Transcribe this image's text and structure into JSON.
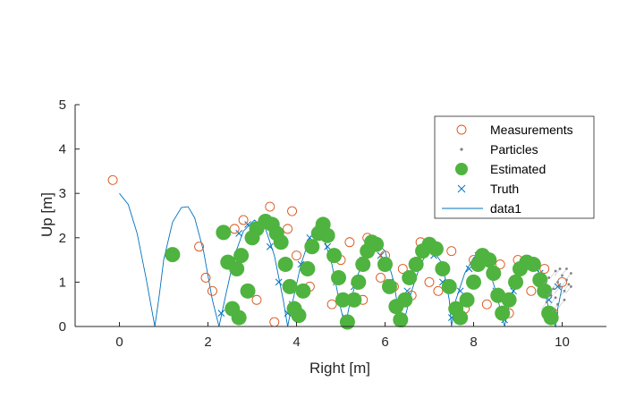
{
  "chart_data": {
    "type": "scatter",
    "xlabel": "Right [m]",
    "ylabel": "Up [m]",
    "xlim": [
      -1,
      11
    ],
    "ylim": [
      0,
      5
    ],
    "xticks": [
      "0",
      "2",
      "4",
      "6",
      "8",
      "10"
    ],
    "yticks": [
      "0",
      "1",
      "2",
      "3",
      "4",
      "5"
    ],
    "grid": false,
    "legend_position": "top-right",
    "legend": [
      "Measurements",
      "Particles",
      "Estimated",
      "Truth",
      "data1"
    ],
    "colors": {
      "measurements": "#d95319",
      "particles": "#808080",
      "estimated": "#4fb33f",
      "truth": "#0072bd",
      "data1": "#0072bd",
      "axis": "#262626"
    },
    "series": [
      {
        "name": "Measurements",
        "marker": "open-circle",
        "x": [
          -0.15,
          1.8,
          1.95,
          2.1,
          2.6,
          2.8,
          3.1,
          3.4,
          3.5,
          3.8,
          3.9,
          4.0,
          4.3,
          4.6,
          4.8,
          5.0,
          5.2,
          5.5,
          5.6,
          5.9,
          6.0,
          6.2,
          6.4,
          6.6,
          6.8,
          7.0,
          7.2,
          7.5,
          7.8,
          8.0,
          8.3,
          8.6,
          8.8,
          9.0,
          9.3,
          9.6,
          9.8,
          10.0
        ],
        "y": [
          3.3,
          1.8,
          1.1,
          0.8,
          2.2,
          2.4,
          0.6,
          2.7,
          0.1,
          2.2,
          2.6,
          1.6,
          0.9,
          2.1,
          0.5,
          1.5,
          1.9,
          0.6,
          2.0,
          1.1,
          1.6,
          0.9,
          1.3,
          0.7,
          1.9,
          1.0,
          0.8,
          1.7,
          0.4,
          1.5,
          0.5,
          1.4,
          0.3,
          1.5,
          0.8,
          1.3,
          0.3,
          1.0
        ]
      },
      {
        "name": "Particles",
        "marker": "dot",
        "x": [
          9.65,
          9.75,
          9.8,
          9.85,
          9.9,
          9.95,
          10.0,
          10.05,
          10.1,
          10.15,
          10.2,
          9.7,
          9.85,
          9.95,
          10.1,
          10.2,
          9.9,
          10.05
        ],
        "y": [
          0.55,
          0.7,
          0.85,
          0.65,
          1.0,
          0.9,
          1.15,
          0.8,
          1.05,
          0.95,
          1.2,
          1.1,
          1.25,
          1.3,
          1.3,
          0.9,
          0.5,
          0.6
        ]
      },
      {
        "name": "Estimated",
        "marker": "filled-circle",
        "x": [
          1.2,
          2.35,
          2.45,
          2.55,
          2.65,
          2.7,
          2.75,
          2.9,
          3.0,
          3.1,
          3.3,
          3.45,
          3.55,
          3.65,
          3.75,
          3.85,
          3.95,
          4.05,
          4.15,
          4.25,
          4.35,
          4.5,
          4.6,
          4.7,
          4.85,
          4.95,
          5.05,
          5.15,
          5.3,
          5.4,
          5.5,
          5.6,
          5.7,
          5.8,
          6.0,
          6.1,
          6.25,
          6.35,
          6.45,
          6.55,
          6.7,
          6.85,
          7.0,
          7.15,
          7.3,
          7.45,
          7.6,
          7.7,
          7.85,
          8.0,
          8.1,
          8.2,
          8.35,
          8.45,
          8.55,
          8.65,
          8.8,
          8.95,
          9.05,
          9.2,
          9.35,
          9.5,
          9.6,
          9.7,
          9.75
        ],
        "y": [
          1.62,
          2.12,
          1.45,
          0.4,
          1.3,
          0.2,
          1.6,
          0.8,
          2.0,
          2.2,
          2.37,
          2.3,
          2.1,
          1.9,
          1.4,
          0.9,
          0.4,
          0.25,
          0.8,
          1.3,
          1.8,
          2.1,
          2.3,
          2.05,
          1.6,
          1.1,
          0.6,
          0.1,
          0.6,
          1.0,
          1.4,
          1.7,
          1.9,
          1.85,
          1.4,
          0.9,
          0.45,
          0.15,
          0.6,
          1.1,
          1.4,
          1.7,
          1.85,
          1.75,
          1.3,
          0.9,
          0.4,
          0.2,
          0.6,
          1.0,
          1.4,
          1.6,
          1.5,
          1.2,
          0.7,
          0.3,
          0.6,
          1.0,
          1.3,
          1.45,
          1.4,
          1.05,
          0.8,
          0.3,
          0.2
        ]
      },
      {
        "name": "Truth",
        "marker": "x",
        "x": [
          2.3,
          2.5,
          2.7,
          2.9,
          3.2,
          3.4,
          3.6,
          3.8,
          3.9,
          4.1,
          4.3,
          4.5,
          4.7,
          4.9,
          5.1,
          5.3,
          5.5,
          5.7,
          5.9,
          6.1,
          6.3,
          6.5,
          6.7,
          6.9,
          7.1,
          7.3,
          7.5,
          7.7,
          7.9,
          8.1,
          8.3,
          8.5,
          8.7,
          8.9,
          9.1,
          9.3,
          9.5,
          9.7,
          9.9
        ],
        "y": [
          0.3,
          1.4,
          2.1,
          2.3,
          2.25,
          1.8,
          1.0,
          0.3,
          0.5,
          1.4,
          2.0,
          2.2,
          1.8,
          1.0,
          0.2,
          0.9,
          1.5,
          1.85,
          1.6,
          1.0,
          0.15,
          0.8,
          1.4,
          1.75,
          1.6,
          1.0,
          0.2,
          0.8,
          1.3,
          1.6,
          1.4,
          0.8,
          0.15,
          0.8,
          1.3,
          1.45,
          1.2,
          0.6,
          0.9
        ]
      },
      {
        "name": "data1",
        "marker": "line",
        "x": [
          0.0,
          0.2,
          0.4,
          0.6,
          0.8,
          0.9,
          1.0,
          1.2,
          1.4,
          1.55,
          1.7,
          1.9,
          2.1,
          2.25,
          2.4,
          2.6,
          2.8,
          3.05,
          3.3,
          3.5,
          3.7,
          3.8,
          3.9,
          4.1,
          4.3,
          4.45,
          4.6,
          4.8,
          5.0,
          5.1,
          5.2,
          5.4,
          5.6,
          5.8,
          6.0,
          6.2,
          6.3,
          6.4,
          6.6,
          6.8,
          6.95,
          7.1,
          7.3,
          7.45,
          7.5,
          7.6,
          7.8,
          8.0,
          8.15,
          8.3,
          8.5,
          8.65,
          8.7,
          8.8,
          9.0,
          9.2,
          9.3,
          9.45,
          9.6,
          9.75,
          9.85,
          9.9,
          10.0
        ],
        "y": [
          3.0,
          2.75,
          2.1,
          1.1,
          0.0,
          0.7,
          1.5,
          2.35,
          2.68,
          2.7,
          2.45,
          1.7,
          0.6,
          0.0,
          0.7,
          1.6,
          2.15,
          2.4,
          2.2,
          1.6,
          0.6,
          0.0,
          0.5,
          1.4,
          2.0,
          2.2,
          2.05,
          1.4,
          0.4,
          0.0,
          0.5,
          1.2,
          1.7,
          1.9,
          1.7,
          1.0,
          0.35,
          0.0,
          0.8,
          1.4,
          1.65,
          1.7,
          1.4,
          0.6,
          0.0,
          0.6,
          1.2,
          1.55,
          1.65,
          1.45,
          0.8,
          0.2,
          0.0,
          0.5,
          1.1,
          1.42,
          1.48,
          1.3,
          0.8,
          0.2,
          0.0,
          0.4,
          0.9
        ]
      }
    ]
  }
}
